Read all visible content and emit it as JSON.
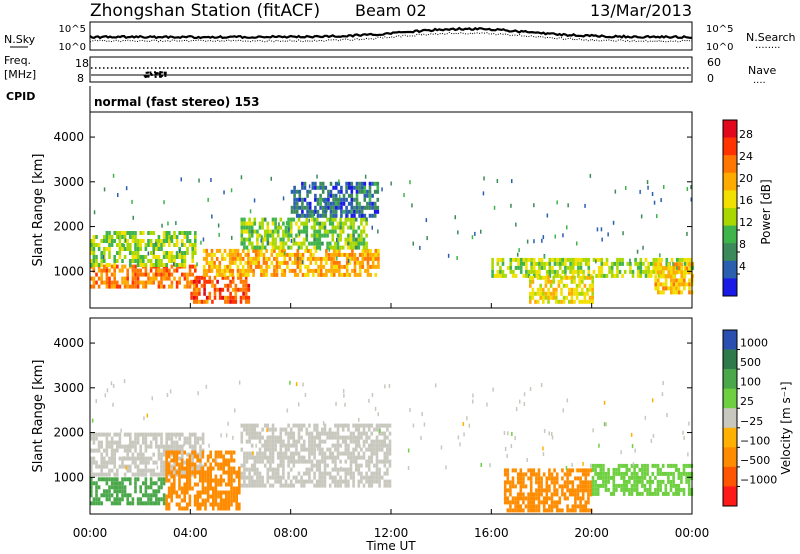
{
  "header": {
    "station": "Zhongshan Station (fitACF)",
    "beam": "Beam 02",
    "date": "13/Mar/2013"
  },
  "sky_panel": {
    "left_label": "N.Sky",
    "right_label": "N.Search",
    "right_marker": "........",
    "left_ticks": [
      "10^5",
      "10^0"
    ],
    "right_ticks": [
      "10^5",
      "10^0"
    ]
  },
  "freq_panel": {
    "left_label_1": "Freq.",
    "left_label_2": "[MHz]",
    "right_label": "Nave",
    "right_marker": "....",
    "left_ticks": [
      "18",
      "8"
    ],
    "right_ticks": [
      "60",
      "0"
    ]
  },
  "cpid": {
    "label": "CPID",
    "text": "normal (fast stereo) 153"
  },
  "range_axis": {
    "title": "Slant Range [km]",
    "ticks": [
      "4000",
      "3000",
      "2000",
      "1000"
    ]
  },
  "time_axis": {
    "title": "Time UT",
    "ticks": [
      "00:00",
      "04:00",
      "08:00",
      "12:00",
      "16:00",
      "20:00",
      "00:00"
    ]
  },
  "power_scale": {
    "title": "Power [dB]",
    "labels": [
      "28",
      "24",
      "20",
      "16",
      "12",
      "8",
      "4"
    ],
    "colors": [
      "#e0081a",
      "#ff3300",
      "#ff7700",
      "#ffaa00",
      "#f2e000",
      "#a8d800",
      "#3fb44a",
      "#3c8a5a",
      "#2a5fb0",
      "#1a1ae6"
    ]
  },
  "velocity_scale": {
    "title": "Velocity [m s⁻¹]",
    "labels": [
      "1000",
      "500",
      "100",
      "25",
      "−25",
      "−100",
      "−500",
      "−1000"
    ],
    "colors": [
      "#2a4fb0",
      "#2f7a4a",
      "#4aa84a",
      "#6ed040",
      "#c8c8be",
      "#ffb000",
      "#ff8c00",
      "#ff5500",
      "#ff1a1a"
    ]
  },
  "chart_data": [
    {
      "type": "heatmap",
      "title": "Power",
      "xlabel": "Time UT",
      "ylabel": "Slant Range [km]",
      "xlim": [
        0,
        24
      ],
      "ylim": [
        180,
        4560
      ],
      "colorbar": {
        "label": "Power [dB]",
        "ticks": [
          4,
          8,
          12,
          16,
          20,
          24,
          28
        ]
      },
      "regions": [
        {
          "t_start": 0.0,
          "t_end": 4.2,
          "range_start": 650,
          "range_end": 1150,
          "value": 24
        },
        {
          "t_start": 0.0,
          "t_end": 4.2,
          "range_start": 1150,
          "range_end": 1900,
          "value": 14
        },
        {
          "t_start": 4.0,
          "t_end": 6.3,
          "range_start": 300,
          "range_end": 900,
          "value": 26
        },
        {
          "t_start": 4.5,
          "t_end": 11.5,
          "range_start": 900,
          "range_end": 1500,
          "value": 21
        },
        {
          "t_start": 6.0,
          "t_end": 11.0,
          "range_start": 1500,
          "range_end": 2200,
          "value": 13
        },
        {
          "t_start": 8.0,
          "t_end": 11.5,
          "range_start": 2200,
          "range_end": 3000,
          "value": 6
        },
        {
          "t_start": 16.0,
          "t_end": 24.0,
          "range_start": 900,
          "range_end": 1300,
          "value": 15
        },
        {
          "t_start": 17.5,
          "t_end": 20.0,
          "range_start": 300,
          "range_end": 900,
          "value": 18
        },
        {
          "t_start": 22.5,
          "t_end": 24.0,
          "range_start": 500,
          "range_end": 1200,
          "value": 20
        }
      ]
    },
    {
      "type": "heatmap",
      "title": "Velocity",
      "xlabel": "Time UT",
      "ylabel": "Slant Range [km]",
      "xlim": [
        0,
        24
      ],
      "ylim": [
        180,
        4560
      ],
      "colorbar": {
        "label": "Velocity [m s⁻¹]",
        "ticks": [
          1000,
          500,
          100,
          25,
          -25,
          -100,
          -500,
          -1000
        ]
      },
      "regions": [
        {
          "t_start": 0.0,
          "t_end": 4.5,
          "range_start": 1100,
          "range_end": 2000,
          "value": 0
        },
        {
          "t_start": 0.0,
          "t_end": 3.0,
          "range_start": 400,
          "range_end": 1000,
          "value": 150
        },
        {
          "t_start": 3.0,
          "t_end": 6.0,
          "range_start": 300,
          "range_end": 1600,
          "value": -300
        },
        {
          "t_start": 6.0,
          "t_end": 12.0,
          "range_start": 800,
          "range_end": 2200,
          "value": 0
        },
        {
          "t_start": 16.5,
          "t_end": 20.0,
          "range_start": 300,
          "range_end": 1200,
          "value": -120
        },
        {
          "t_start": 20.0,
          "t_end": 24.0,
          "range_start": 600,
          "range_end": 1300,
          "value": 80
        }
      ]
    }
  ]
}
